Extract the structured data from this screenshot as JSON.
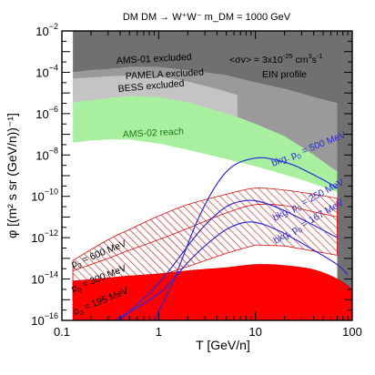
{
  "chart_data": {
    "type": "area",
    "title": "DM DM → W⁺W⁻     m_DM = 1000 GeV",
    "xlabel": "T  [GeV/n]",
    "ylabel": "φ [(m² s sr (GeV/n))⁻¹]",
    "x_scale": "log",
    "y_scale": "log",
    "xlim": [
      0.1,
      100
    ],
    "ylim": [
      1e-16,
      0.01
    ],
    "x_ticks": [
      {
        "value": 0.1,
        "label": "0.1"
      },
      {
        "value": 1,
        "label": "1"
      },
      {
        "value": 10,
        "label": "10"
      },
      {
        "value": 100,
        "label": "100"
      }
    ],
    "y_ticks": [
      -16,
      -14,
      -12,
      -10,
      -8,
      -6,
      -4,
      -2
    ],
    "annotations": {
      "sigma_v": "<σv> = 3x10",
      "sigma_v_exp": "-25",
      "sigma_v_unit": " cm",
      "sigma_v_unit_exp": "3",
      "sigma_v_unit2": "s",
      "sigma_v_unit2_exp": "-1",
      "profile": "EIN profile"
    },
    "exclusions": [
      {
        "name": "AMS-01 excluded",
        "color": "#707070",
        "points": [
          [
            0.13,
            -2
          ],
          [
            100,
            -2
          ],
          [
            100,
            -16
          ],
          [
            70,
            -16
          ],
          [
            70,
            -5.5
          ],
          [
            40,
            -5.2
          ],
          [
            20,
            -4.8
          ],
          [
            10,
            -4.5
          ],
          [
            5,
            -4.15
          ],
          [
            2,
            -3.9
          ],
          [
            1,
            -3.75
          ],
          [
            0.5,
            -3.75
          ],
          [
            0.3,
            -3.85
          ],
          [
            0.2,
            -3.9
          ],
          [
            0.13,
            -4.0
          ]
        ]
      },
      {
        "name": "PAMELA excluded",
        "color": "#9a9a9a",
        "points": [
          [
            0.13,
            -4.0
          ],
          [
            0.2,
            -3.9
          ],
          [
            0.3,
            -3.85
          ],
          [
            0.5,
            -3.75
          ],
          [
            1,
            -3.75
          ],
          [
            2,
            -3.9
          ],
          [
            5,
            -4.15
          ],
          [
            10,
            -4.5
          ],
          [
            20,
            -4.8
          ],
          [
            40,
            -5.2
          ],
          [
            70,
            -5.5
          ],
          [
            70,
            -8.8
          ],
          [
            60,
            -8.6
          ],
          [
            40,
            -8.0
          ],
          [
            20,
            -7.1
          ],
          [
            10,
            -6.5
          ],
          [
            6,
            -6.1
          ],
          [
            4,
            -5.85
          ],
          [
            2,
            -5.45
          ],
          [
            1,
            -5.2
          ],
          [
            0.5,
            -5.15
          ],
          [
            0.3,
            -5.25
          ],
          [
            0.2,
            -5.35
          ],
          [
            0.13,
            -5.45
          ]
        ]
      },
      {
        "name": "BESS excluded",
        "color": "#c4c4c4",
        "points": [
          [
            0.13,
            -4.3
          ],
          [
            0.3,
            -4.2
          ],
          [
            0.5,
            -4.15
          ],
          [
            1,
            -4.2
          ],
          [
            2,
            -4.45
          ],
          [
            4,
            -4.8
          ],
          [
            6.5,
            -5.1
          ],
          [
            6.5,
            -6.15
          ],
          [
            4,
            -5.85
          ],
          [
            2,
            -5.45
          ],
          [
            1,
            -5.2
          ],
          [
            0.5,
            -5.15
          ],
          [
            0.3,
            -5.25
          ],
          [
            0.2,
            -5.35
          ],
          [
            0.13,
            -5.45
          ]
        ]
      },
      {
        "name": "AMS-02 reach",
        "color": "#a8f0a0",
        "points": [
          [
            0.13,
            -5.45
          ],
          [
            0.2,
            -5.35
          ],
          [
            0.3,
            -5.25
          ],
          [
            0.5,
            -5.15
          ],
          [
            1,
            -5.2
          ],
          [
            2,
            -5.45
          ],
          [
            4,
            -5.85
          ],
          [
            6,
            -6.1
          ],
          [
            10,
            -6.5
          ],
          [
            20,
            -7.1
          ],
          [
            40,
            -8.0
          ],
          [
            60,
            -8.6
          ],
          [
            70,
            -8.8
          ],
          [
            70,
            -9.8
          ],
          [
            50,
            -9.55
          ],
          [
            30,
            -9.2
          ],
          [
            20,
            -8.95
          ],
          [
            10,
            -8.55
          ],
          [
            5,
            -8.2
          ],
          [
            2,
            -7.75
          ],
          [
            1,
            -7.45
          ],
          [
            0.5,
            -7.25
          ],
          [
            0.3,
            -7.25
          ],
          [
            0.2,
            -7.3
          ],
          [
            0.13,
            -7.4
          ]
        ]
      }
    ],
    "signal_bands": [
      {
        "label": "p",
        "sub": "0",
        "value": " = 600 MeV",
        "fill": "#ffffff",
        "stroke": "#d01010",
        "hatch": true,
        "upper": [
          [
            0.13,
            -13.1
          ],
          [
            0.3,
            -12.1
          ],
          [
            0.5,
            -11.6
          ],
          [
            1,
            -10.95
          ],
          [
            2,
            -10.4
          ],
          [
            5,
            -9.9
          ],
          [
            10,
            -9.6
          ],
          [
            20,
            -9.7
          ],
          [
            40,
            -9.9
          ],
          [
            70,
            -10.1
          ]
        ],
        "lower": [
          [
            0.13,
            -14.55
          ],
          [
            0.3,
            -13.75
          ],
          [
            0.5,
            -13.3
          ],
          [
            1,
            -12.6
          ],
          [
            2,
            -12.0
          ],
          [
            5,
            -11.35
          ],
          [
            10,
            -11.1
          ],
          [
            20,
            -11.15
          ],
          [
            40,
            -11.4
          ],
          [
            70,
            -11.7
          ]
        ]
      },
      {
        "label": "p",
        "sub": "0",
        "value": " = 300 MeV",
        "fill": "#ffffff",
        "stroke": "#d01010",
        "hatch": true,
        "upper": [
          [
            0.13,
            -13.6
          ],
          [
            0.3,
            -13.0
          ],
          [
            0.5,
            -12.6
          ],
          [
            1,
            -12.1
          ],
          [
            2,
            -11.55
          ],
          [
            5,
            -10.8
          ],
          [
            10,
            -10.4
          ],
          [
            20,
            -10.45
          ],
          [
            40,
            -10.75
          ],
          [
            70,
            -11.0
          ]
        ],
        "lower": [
          [
            0.13,
            -15.05
          ],
          [
            0.3,
            -14.5
          ],
          [
            0.5,
            -14.25
          ],
          [
            1,
            -13.85
          ],
          [
            2,
            -13.4
          ],
          [
            5,
            -12.75
          ],
          [
            10,
            -12.35
          ],
          [
            20,
            -12.4
          ],
          [
            40,
            -12.65
          ],
          [
            70,
            -12.85
          ]
        ]
      },
      {
        "label": "p",
        "sub": "0",
        "value": " = 195 MeV",
        "fill": "#ff0000",
        "stroke": "#e00000",
        "hatch": false,
        "upper": [
          [
            0.13,
            -14.1
          ],
          [
            0.3,
            -13.95
          ],
          [
            0.5,
            -13.85
          ],
          [
            1,
            -13.75
          ],
          [
            2,
            -13.6
          ],
          [
            5,
            -13.45
          ],
          [
            10,
            -13.3
          ],
          [
            20,
            -13.35
          ],
          [
            40,
            -13.55
          ],
          [
            70,
            -14.0
          ],
          [
            100,
            -14.5
          ]
        ],
        "lower": [
          [
            0.13,
            -16
          ],
          [
            100,
            -16
          ]
        ]
      }
    ],
    "background_curves": [
      {
        "label": "bkg. p",
        "sub": "0",
        "value": " = 500 MeV",
        "color": "#2a2ad8",
        "points": [
          [
            0.9,
            -16
          ],
          [
            1.5,
            -13.8
          ],
          [
            2.5,
            -11.2
          ],
          [
            4,
            -9.4
          ],
          [
            6,
            -8.5
          ],
          [
            10,
            -8.15
          ],
          [
            15,
            -8.2
          ],
          [
            25,
            -8.5
          ],
          [
            50,
            -9.2
          ],
          [
            70,
            -9.6
          ]
        ]
      },
      {
        "label": "bkg. p",
        "sub": "0",
        "value": " = 250 MeV",
        "color": "#2a2ad8",
        "points": [
          [
            0.4,
            -16
          ],
          [
            1,
            -14.2
          ],
          [
            2,
            -12.4
          ],
          [
            3,
            -11.4
          ],
          [
            5,
            -10.5
          ],
          [
            8,
            -10.2
          ],
          [
            12,
            -10.3
          ],
          [
            20,
            -10.7
          ],
          [
            40,
            -11.4
          ],
          [
            70,
            -12.0
          ]
        ]
      },
      {
        "label": "bkg. p",
        "sub": "0",
        "value": " = 167 MeV",
        "color": "#2a2ad8",
        "points": [
          [
            0.35,
            -16
          ],
          [
            1,
            -14.7
          ],
          [
            2,
            -13.2
          ],
          [
            3,
            -12.4
          ],
          [
            5,
            -11.6
          ],
          [
            8,
            -11.25
          ],
          [
            12,
            -11.35
          ],
          [
            20,
            -11.8
          ],
          [
            40,
            -12.6
          ],
          [
            70,
            -13.3
          ],
          [
            90,
            -13.8
          ]
        ]
      }
    ]
  }
}
